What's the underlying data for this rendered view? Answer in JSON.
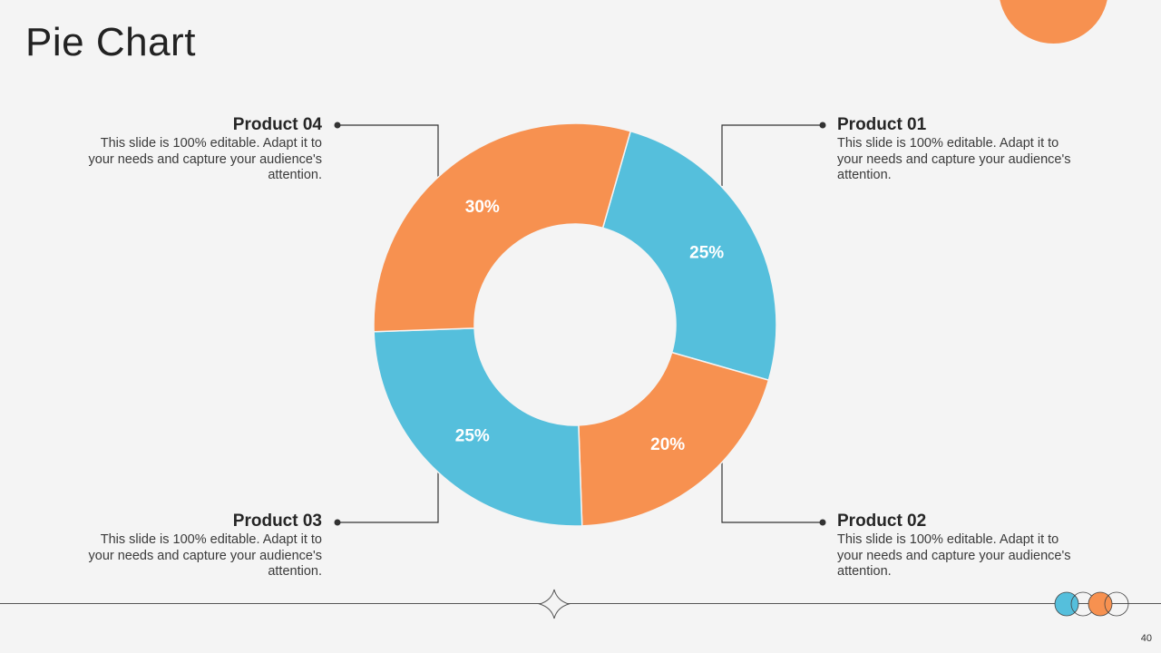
{
  "slide": {
    "title": "Pie Chart",
    "page_number": "40"
  },
  "colors": {
    "blue": "#55bfdc",
    "orange": "#f79150",
    "background": "#f4f4f4",
    "text": "#262626"
  },
  "products": {
    "p1": {
      "name": "Product 01",
      "desc": "This slide is 100% editable.  Adapt it to your needs and capture your audience's attention."
    },
    "p2": {
      "name": "Product 02",
      "desc": "This slide is 100% editable.  Adapt it to your needs and capture your audience's attention."
    },
    "p3": {
      "name": "Product 03",
      "desc": "This slide is 100% editable.  Adapt it to your needs and capture your audience's attention."
    },
    "p4": {
      "name": "Product 04",
      "desc": "This slide is 100% editable.  Adapt it to your needs and capture your audience's attention."
    }
  },
  "chart_data": {
    "type": "pie",
    "variant": "donut",
    "title": "",
    "slices": [
      {
        "label": "25%",
        "value": 25,
        "color": "#55bfdc"
      },
      {
        "label": "20%",
        "value": 20,
        "color": "#f79150"
      },
      {
        "label": "25%",
        "value": 25,
        "color": "#55bfdc"
      },
      {
        "label": "30%",
        "value": 30,
        "color": "#f79150"
      }
    ]
  }
}
